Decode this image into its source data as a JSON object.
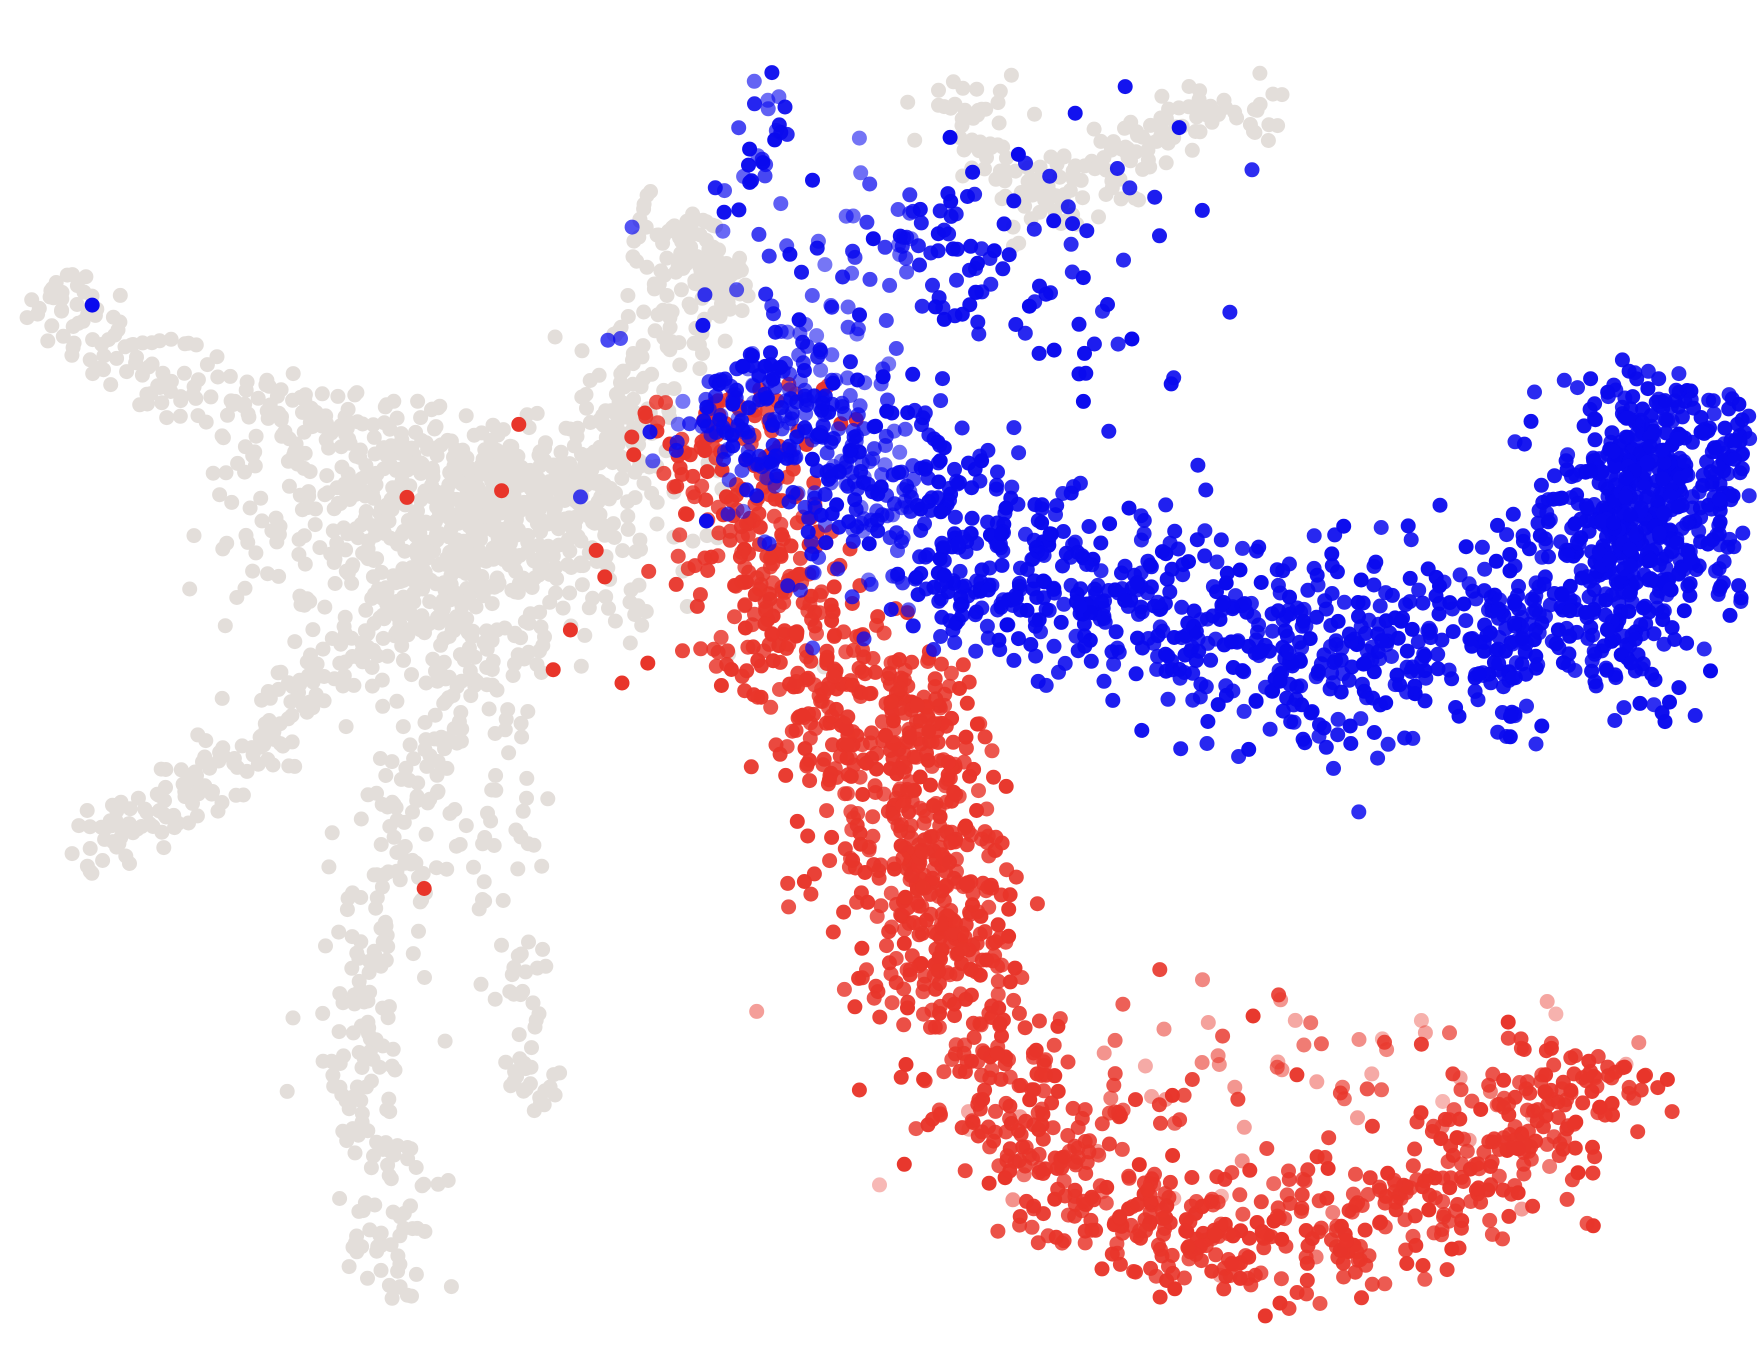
{
  "chart_data": {
    "type": "scatter",
    "title": "",
    "xlabel": "",
    "ylabel": "",
    "axes_visible": false,
    "grid": false,
    "legend": "none",
    "xlim": [
      0,
      100
    ],
    "ylim": [
      0,
      100
    ],
    "colors": {
      "background_cells": "#e3deda",
      "red_group": "#e8352a",
      "blue_group": "#0a0aee",
      "transition": "#ffffff"
    },
    "series": [
      {
        "group": "background-grey",
        "color": "#e3deda",
        "shape": "strand",
        "path": [
          [
            1.5,
            80
          ],
          [
            6,
            74.5
          ],
          [
            11,
            72
          ],
          [
            16,
            70
          ],
          [
            20,
            69
          ],
          [
            24,
            67.5
          ],
          [
            28,
            66
          ],
          [
            31,
            65
          ],
          [
            34,
            66.5
          ],
          [
            36,
            73
          ],
          [
            38,
            78.5
          ],
          [
            41,
            81.5
          ]
        ],
        "spread": 1.6,
        "n": 400
      },
      {
        "group": "background-grey",
        "color": "#e3deda",
        "shape": "strand",
        "path": [
          [
            3.3,
            36
          ],
          [
            7,
            40
          ],
          [
            11,
            43
          ],
          [
            15,
            47
          ],
          [
            19,
            52
          ],
          [
            23,
            57
          ],
          [
            27,
            62
          ],
          [
            30,
            65
          ]
        ],
        "spread": 1.3,
        "n": 260
      },
      {
        "group": "background-grey",
        "color": "#e3deda",
        "shape": "strand",
        "path": [
          [
            23,
            3.5
          ],
          [
            21,
            12
          ],
          [
            19.5,
            20
          ],
          [
            20,
            28
          ],
          [
            22,
            37
          ],
          [
            24,
            46
          ],
          [
            26,
            54
          ],
          [
            28,
            61
          ]
        ],
        "spread": 1.3,
        "n": 300
      },
      {
        "group": "background-grey",
        "color": "#e3deda",
        "shape": "strand",
        "path": [
          [
            30,
            17
          ],
          [
            29,
            26
          ],
          [
            28,
            36
          ],
          [
            28.5,
            46
          ],
          [
            29.5,
            55
          ]
        ],
        "spread": 1.1,
        "n": 90
      },
      {
        "group": "background-grey",
        "color": "#e3deda",
        "shape": "blob",
        "center": [
          26,
          62
        ],
        "radius": [
          11,
          8
        ],
        "n": 620
      },
      {
        "group": "background-grey",
        "color": "#e3deda",
        "shape": "strand",
        "path": [
          [
            54,
            96
          ],
          [
            55,
            93
          ],
          [
            56,
            90
          ],
          [
            58,
            87
          ],
          [
            60,
            85
          ],
          [
            62,
            88
          ],
          [
            64,
            91
          ]
        ],
        "spread": 1.5,
        "n": 110
      },
      {
        "group": "background-grey",
        "color": "#e3deda",
        "shape": "strand",
        "path": [
          [
            64,
            90
          ],
          [
            67,
            92
          ],
          [
            70,
            94
          ],
          [
            73,
            91
          ]
        ],
        "spread": 1.0,
        "n": 60
      },
      {
        "group": "background-grey",
        "color": "#e3deda",
        "shape": "strand",
        "path": [
          [
            36,
            85
          ],
          [
            38,
            84.5
          ],
          [
            40,
            82
          ],
          [
            41,
            78
          ]
        ],
        "spread": 1.2,
        "n": 90
      },
      {
        "group": "red",
        "color": "#e8352a",
        "shape": "strand",
        "path": [
          [
            41,
            72
          ],
          [
            42,
            65
          ],
          [
            44,
            56
          ],
          [
            47,
            48
          ],
          [
            50,
            40
          ],
          [
            53,
            30
          ],
          [
            56,
            22
          ],
          [
            60,
            14
          ],
          [
            64,
            9
          ],
          [
            69,
            7
          ],
          [
            75,
            8
          ],
          [
            81,
            11
          ],
          [
            86,
            14
          ],
          [
            90,
            18
          ],
          [
            92,
            22
          ]
        ],
        "spread": 2.6,
        "n": 1200
      },
      {
        "group": "red",
        "color": "#e8352a",
        "shape": "strand",
        "path": [
          [
            51,
            52
          ],
          [
            53,
            44
          ],
          [
            54,
            36
          ],
          [
            55,
            28
          ]
        ],
        "spread": 1.8,
        "n": 240
      },
      {
        "group": "red-sparse",
        "color": "#e8352a",
        "shape": "blob",
        "center": [
          73,
          20
        ],
        "radius": [
          16,
          9
        ],
        "n": 90
      },
      {
        "group": "blue",
        "color": "#0a0aee",
        "shape": "strand",
        "path": [
          [
            41,
            74
          ],
          [
            46,
            69
          ],
          [
            52,
            62
          ],
          [
            58,
            58
          ],
          [
            64,
            55
          ],
          [
            70,
            53.5
          ],
          [
            76,
            52.5
          ],
          [
            82,
            52
          ],
          [
            88,
            53
          ],
          [
            93,
            58
          ],
          [
            97,
            66
          ],
          [
            98,
            72
          ]
        ],
        "spread": 3.6,
        "n": 1400
      },
      {
        "group": "blue",
        "color": "#0a0aee",
        "shape": "blob",
        "center": [
          94,
          63
        ],
        "radius": [
          4,
          9
        ],
        "n": 320
      },
      {
        "group": "blue-sparse",
        "color": "#0a0aee",
        "shape": "blob",
        "center": [
          55,
          81
        ],
        "radius": [
          13,
          10
        ],
        "n": 160
      },
      {
        "group": "blue-sparse",
        "color": "#0a0aee",
        "shape": "strand",
        "path": [
          [
            43,
            96
          ],
          [
            43.5,
            92
          ],
          [
            42,
            88
          ],
          [
            41.5,
            85
          ]
        ],
        "spread": 0.8,
        "n": 25
      },
      {
        "group": "single-blue",
        "color": "#0a0aee",
        "shape": "point",
        "points": [
          [
            4.2,
            78.5
          ]
        ]
      },
      {
        "group": "single-red",
        "color": "#e8352a",
        "shape": "point",
        "points": [
          [
            22.5,
            64
          ],
          [
            28,
            64.5
          ],
          [
            29,
            69.5
          ],
          [
            23.5,
            34.5
          ],
          [
            32,
            54
          ],
          [
            31,
            51
          ],
          [
            35,
            50
          ],
          [
            36.5,
            51.5
          ],
          [
            34,
            58
          ],
          [
            33.5,
            60
          ]
        ]
      }
    ]
  }
}
